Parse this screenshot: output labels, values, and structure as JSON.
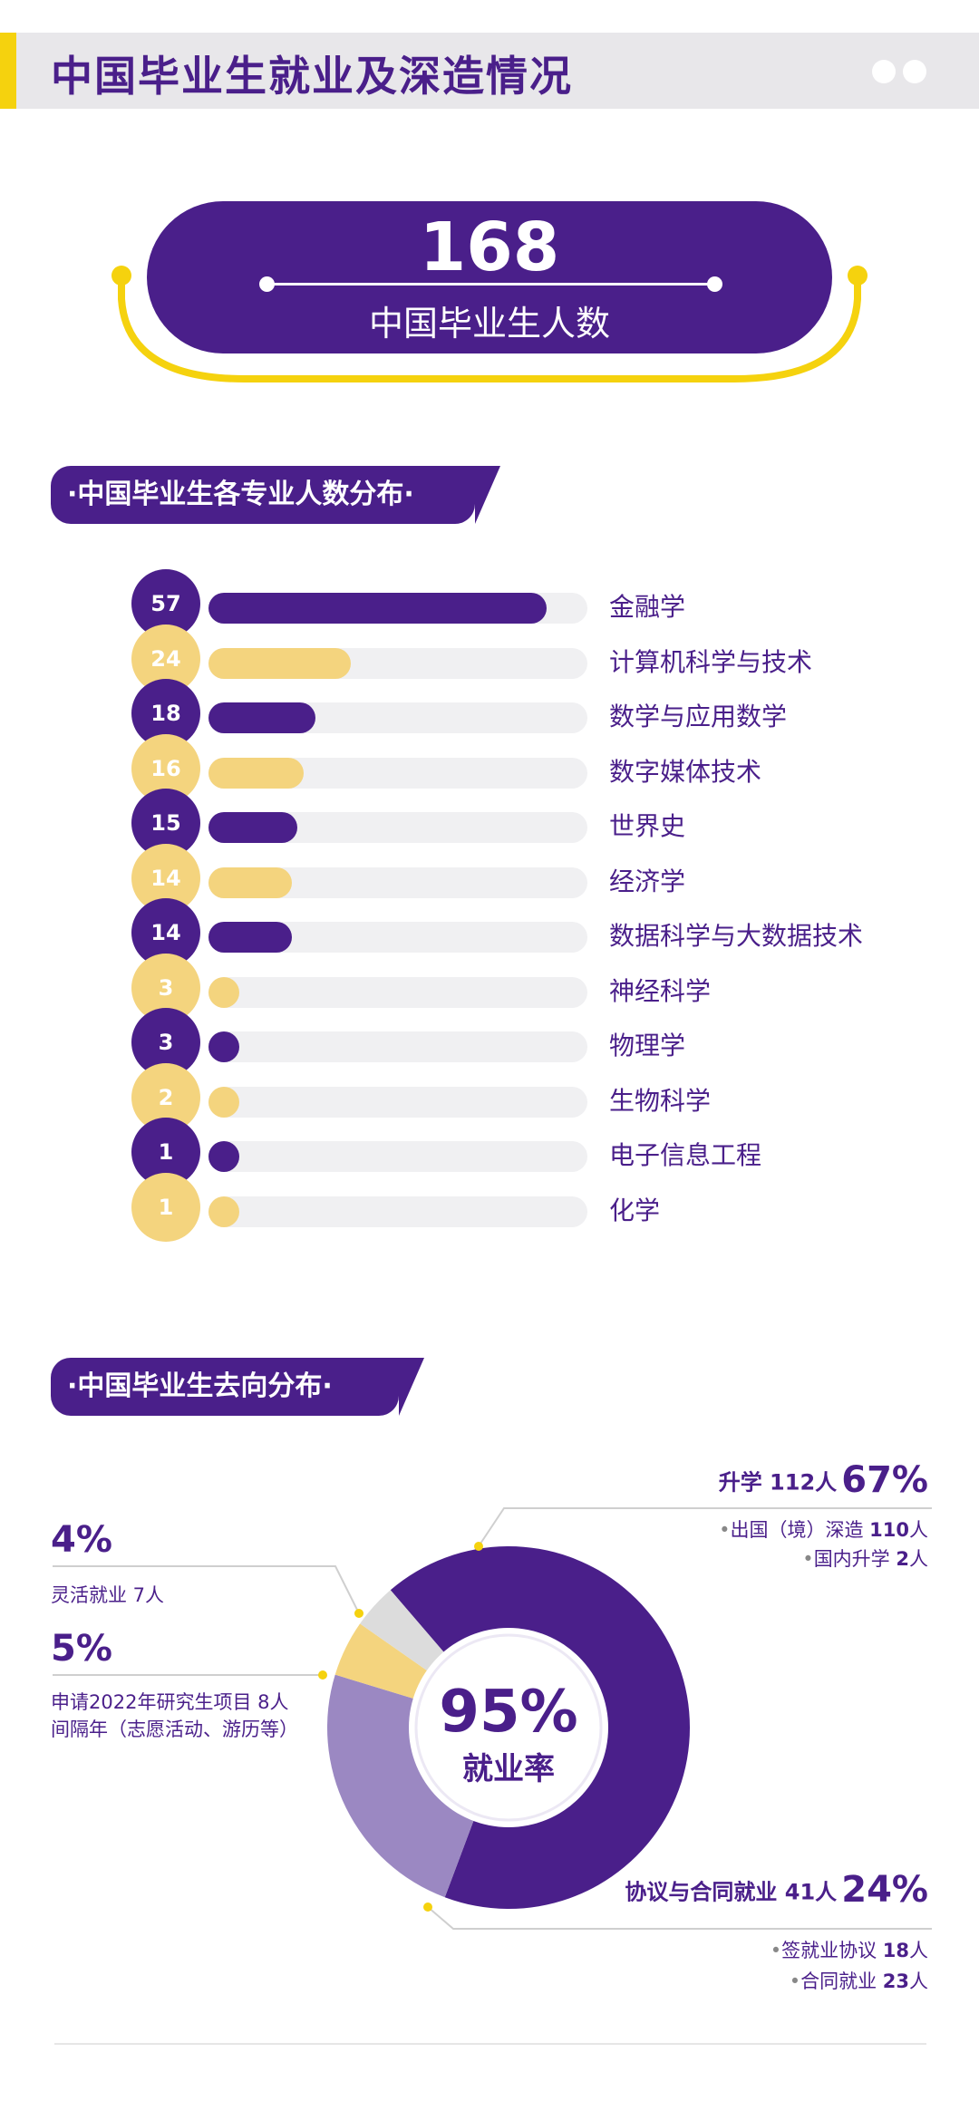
{
  "header": {
    "title": "中国毕业生就业及深造情况"
  },
  "total": {
    "number": "168",
    "label": "中国毕业生人数"
  },
  "majors_section": {
    "title": "·中国毕业生各专业人数分布·"
  },
  "destination_section": {
    "title": "·中国毕业生去向分布·"
  },
  "chart_data": [
    {
      "type": "bar",
      "orientation": "horizontal",
      "categories": [
        "金融学",
        "计算机科学与技术",
        "数学与应用数学",
        "数字媒体技术",
        "世界史",
        "经济学",
        "数据科学与大数据技术",
        "神经科学",
        "物理学",
        "生物科学",
        "电子信息工程",
        "化学"
      ],
      "values": [
        57,
        24,
        18,
        16,
        15,
        14,
        14,
        3,
        3,
        2,
        1,
        1
      ],
      "value_labels": [
        "57",
        "24",
        "18",
        "16",
        "15",
        "14",
        "14",
        "3",
        "3",
        "2",
        "1",
        "1"
      ],
      "max": 63,
      "colors": [
        "#4a1f8a",
        "#f4d47e"
      ]
    },
    {
      "type": "pie",
      "donut": true,
      "center": {
        "value": "95%",
        "label": "就业率"
      },
      "slices": [
        {
          "value": 67,
          "color": "#4a1f8a"
        },
        {
          "value": 24,
          "color": "#9b88c2"
        },
        {
          "value": 5,
          "color": "#f4d47e"
        },
        {
          "value": 4,
          "color": "#dcdcdc"
        }
      ]
    }
  ],
  "annotations": {
    "study": {
      "title": "升学 112人",
      "pct": "67%",
      "sub1_label": "出国（境）深造",
      "sub1_value": "110",
      "sub1_unit": "人",
      "sub2_label": "国内升学",
      "sub2_value": "2",
      "sub2_unit": "人"
    },
    "contract": {
      "title": "协议与合同就业 41人",
      "pct": "24%",
      "sub1_label": "签就业协议",
      "sub1_value": "18",
      "sub1_unit": "人",
      "sub2_label": "合同就业",
      "sub2_value": "23",
      "sub2_unit": "人"
    },
    "flexible": {
      "pct": "4%",
      "label": "灵活就业 7人"
    },
    "gap": {
      "pct": "5%",
      "line1": "申请2022年研究生项目 8人",
      "line2": "间隔年（志愿活动、游历等）"
    }
  }
}
